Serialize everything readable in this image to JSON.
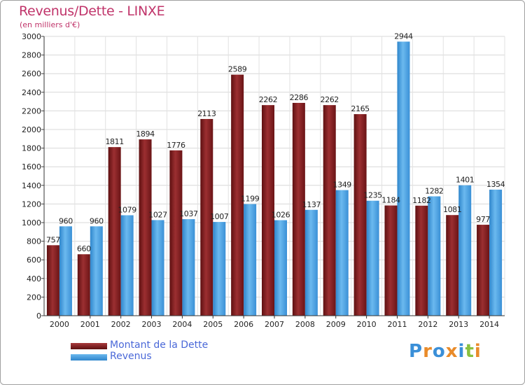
{
  "title": "Revenus/Dette - LINXE",
  "subtitle": "(en milliers d'€)",
  "logo_text": "Proxiti",
  "colors": {
    "debt": "#7a1a1c",
    "debt_light": "#a83a3c",
    "revenue": "#3a98de",
    "revenue_light": "#6ab8ee",
    "title": "#c0346a",
    "legend_text": "#4a68d8"
  },
  "chart_data": {
    "type": "bar",
    "title": "Revenus/Dette - LINXE",
    "subtitle": "(en milliers d'€)",
    "categories": [
      "2000",
      "2001",
      "2002",
      "2003",
      "2004",
      "2005",
      "2006",
      "2007",
      "2008",
      "2009",
      "2010",
      "2011",
      "2012",
      "2013",
      "2014"
    ],
    "series": [
      {
        "name": "Montant de la Dette",
        "values": [
          757,
          660,
          1811,
          1894,
          1776,
          2113,
          2589,
          2262,
          2286,
          2262,
          2165,
          1184,
          1182,
          1081,
          977
        ]
      },
      {
        "name": "Revenus",
        "values": [
          960,
          960,
          1079,
          1027,
          1037,
          1007,
          1199,
          1026,
          1137,
          1349,
          1235,
          2944,
          1282,
          1401,
          1354
        ]
      }
    ],
    "ylim": [
      0,
      3000
    ],
    "yticks": [
      0,
      200,
      400,
      600,
      800,
      1000,
      1200,
      1400,
      1600,
      1800,
      2000,
      2200,
      2400,
      2600,
      2800,
      3000
    ],
    "grid": true,
    "legend_position": "bottom-left"
  }
}
